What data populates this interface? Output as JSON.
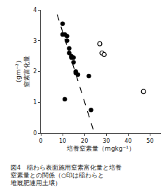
{
  "chart_data": {
    "type": "scatter",
    "xlabel": "培養窒素量（mgkg⁻¹）",
    "ylabel": "（gm⁻²）\n窒素富化量",
    "annotations": [
      "図4　稲わら表面施用窒素富化量と培養\n窒素量との関係（○印は稲わらと\n堆厩肥連用土壌）"
    ],
    "xlim": [
      0,
      55
    ],
    "ylim": [
      0,
      4
    ],
    "xticks": [
      0,
      10,
      20,
      30,
      40,
      50
    ],
    "yticks": [
      0,
      1,
      2,
      3,
      4
    ],
    "grid": false,
    "series": [
      {
        "type": "scatter",
        "marker": "filled",
        "color": "black",
        "x": [
          10,
          10,
          11,
          12,
          12,
          13,
          13,
          14,
          14,
          15,
          15,
          16,
          16,
          17,
          11,
          22,
          23
        ],
        "values": [
          3.55,
          3.2,
          3.2,
          3.15,
          3.0,
          2.75,
          2.6,
          2.5,
          2.45,
          2.45,
          2.3,
          2.0,
          1.95,
          1.9,
          1.1,
          1.85,
          0.75
        ]
      },
      {
        "type": "scatter",
        "marker": "open",
        "color": "black",
        "x": [
          27,
          28,
          29,
          47
        ],
        "values": [
          2.9,
          2.6,
          2.55,
          1.35
        ]
      },
      {
        "type": "line",
        "line_style": "dashed",
        "color": "black",
        "x": [
          7.5,
          24.5
        ],
        "values": [
          3.85,
          0.0
        ]
      }
    ]
  }
}
